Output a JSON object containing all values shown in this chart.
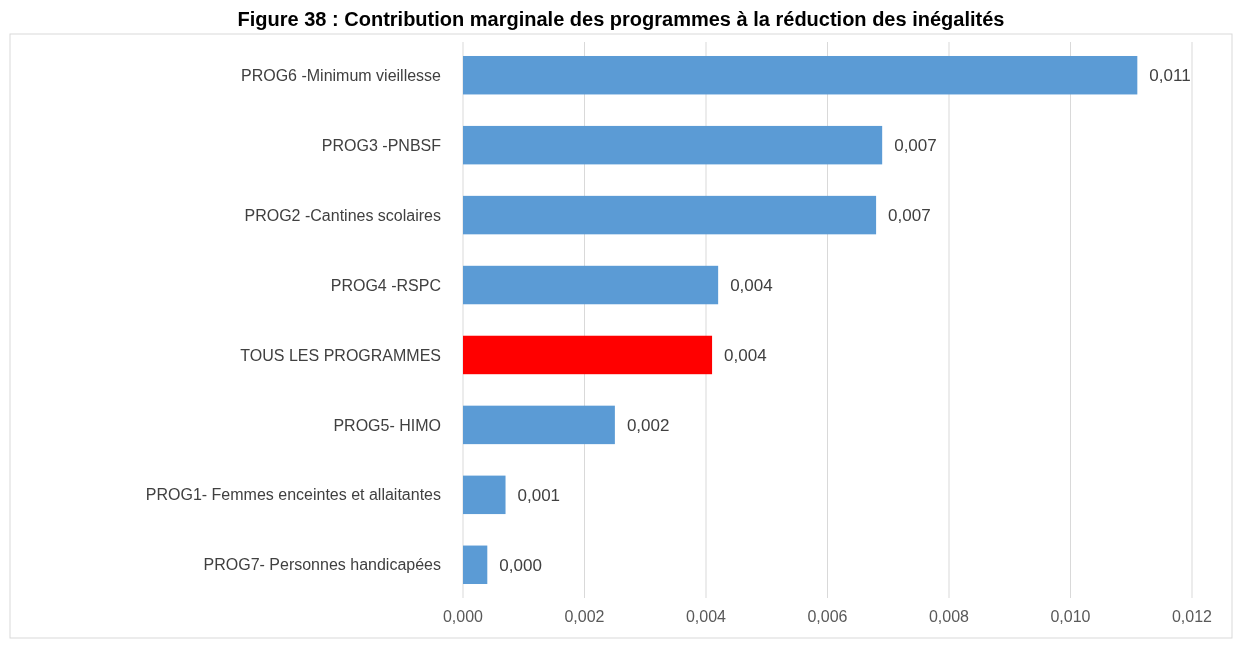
{
  "chart_data": {
    "type": "bar",
    "orientation": "horizontal",
    "title": "Figure 38 : Contribution marginale des programmes à la réduction des inégalités",
    "categories": [
      "PROG6 -Minimum vieillesse",
      "PROG3 -PNBSF",
      "PROG2 -Cantines scolaires",
      "PROG4 -RSPC",
      "TOUS LES PROGRAMMES",
      "PROG5- HIMO",
      "PROG1- Femmes enceintes et allaitantes",
      "PROG7- Personnes handicapées"
    ],
    "values": [
      0.0111,
      0.0069,
      0.0068,
      0.0042,
      0.0041,
      0.0025,
      0.0007,
      0.0004
    ],
    "colors": [
      "#5b9bd5",
      "#5b9bd5",
      "#5b9bd5",
      "#5b9bd5",
      "#ff0000",
      "#5b9bd5",
      "#5b9bd5",
      "#5b9bd5"
    ],
    "value_labels": [
      "0,011",
      "0,007",
      "0,007",
      "0,004",
      "0,004",
      "0,002",
      "0,001",
      "0,000"
    ],
    "xlim": [
      0,
      0.012
    ],
    "xticks": [
      {
        "value": 0,
        "label": "0,000"
      },
      {
        "value": 0.002,
        "label": "0,002"
      },
      {
        "value": 0.004,
        "label": "0,004"
      },
      {
        "value": 0.006,
        "label": "0,006"
      },
      {
        "value": 0.008,
        "label": "0,008"
      },
      {
        "value": 0.01,
        "label": "0,010"
      },
      {
        "value": 0.012,
        "label": "0,012"
      }
    ],
    "grid": "x"
  }
}
